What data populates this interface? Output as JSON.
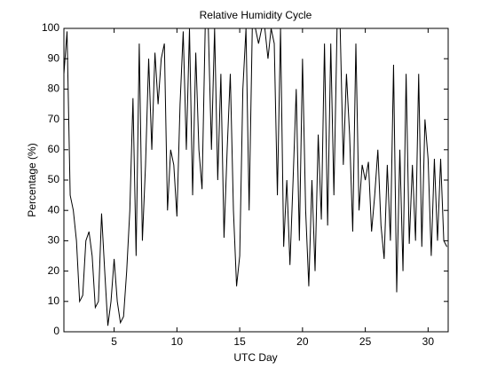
{
  "chart_data": {
    "type": "line",
    "title": "Relative Humidity Cycle",
    "x_label": "UTC Day",
    "y_label": "Percentage (%)",
    "x": [
      1,
      1.25,
      1.5,
      1.75,
      2,
      2.25,
      2.5,
      2.75,
      3,
      3.25,
      3.5,
      3.75,
      4,
      4.25,
      4.5,
      4.75,
      5,
      5.25,
      5.5,
      5.75,
      6,
      6.25,
      6.5,
      6.75,
      7,
      7.25,
      7.5,
      7.75,
      8,
      8.25,
      8.5,
      8.75,
      9,
      9.25,
      9.5,
      9.75,
      10,
      10.25,
      10.5,
      10.75,
      11,
      11.25,
      11.5,
      11.75,
      12,
      12.25,
      12.5,
      12.75,
      13,
      13.25,
      13.5,
      13.75,
      14,
      14.25,
      14.5,
      14.75,
      15,
      15.25,
      15.5,
      15.75,
      16,
      16.25,
      16.5,
      16.75,
      17,
      17.25,
      17.5,
      17.75,
      18,
      18.25,
      18.5,
      18.75,
      19,
      19.25,
      19.5,
      19.75,
      20,
      20.25,
      20.5,
      20.75,
      21,
      21.25,
      21.5,
      21.75,
      22,
      22.25,
      22.5,
      22.75,
      23,
      23.25,
      23.5,
      23.75,
      24,
      24.25,
      24.5,
      24.75,
      25,
      25.25,
      25.5,
      25.75,
      26,
      26.25,
      26.5,
      26.75,
      27,
      27.25,
      27.5,
      27.75,
      28,
      28.25,
      28.5,
      28.75,
      29,
      29.25,
      29.5,
      29.75,
      30,
      30.25,
      30.5,
      30.75,
      31,
      31.25,
      31.5
    ],
    "series": [
      {
        "color": "#000000",
        "values": [
          85,
          99,
          45,
          40,
          30,
          10,
          12,
          30,
          33,
          25,
          8,
          10,
          39,
          20,
          2,
          10,
          24,
          10,
          3,
          5,
          20,
          40,
          77,
          25,
          95,
          30,
          55,
          90,
          60,
          92,
          75,
          90,
          95,
          40,
          60,
          55,
          38,
          75,
          99,
          60,
          100,
          45,
          92,
          60,
          47,
          100,
          100,
          60,
          100,
          50,
          85,
          31,
          60,
          85,
          40,
          15,
          25,
          80,
          100,
          40,
          100,
          100,
          95,
          100,
          100,
          90,
          100,
          95,
          45,
          100,
          28,
          50,
          22,
          50,
          80,
          30,
          90,
          40,
          15,
          50,
          20,
          65,
          37,
          95,
          35,
          95,
          45,
          100,
          100,
          55,
          85,
          65,
          33,
          95,
          40,
          55,
          50,
          56,
          33,
          45,
          60,
          35,
          24,
          55,
          30,
          88,
          13,
          60,
          20,
          85,
          29,
          55,
          30,
          85,
          28,
          70,
          57,
          25,
          57,
          30,
          57,
          30,
          28
        ]
      }
    ],
    "xlim": [
      1,
      31.6
    ],
    "ylim": [
      0,
      100
    ],
    "xticks": [
      5,
      10,
      15,
      20,
      25,
      30
    ],
    "yticks": [
      0,
      10,
      20,
      30,
      40,
      50,
      60,
      70,
      80,
      90,
      100
    ]
  }
}
